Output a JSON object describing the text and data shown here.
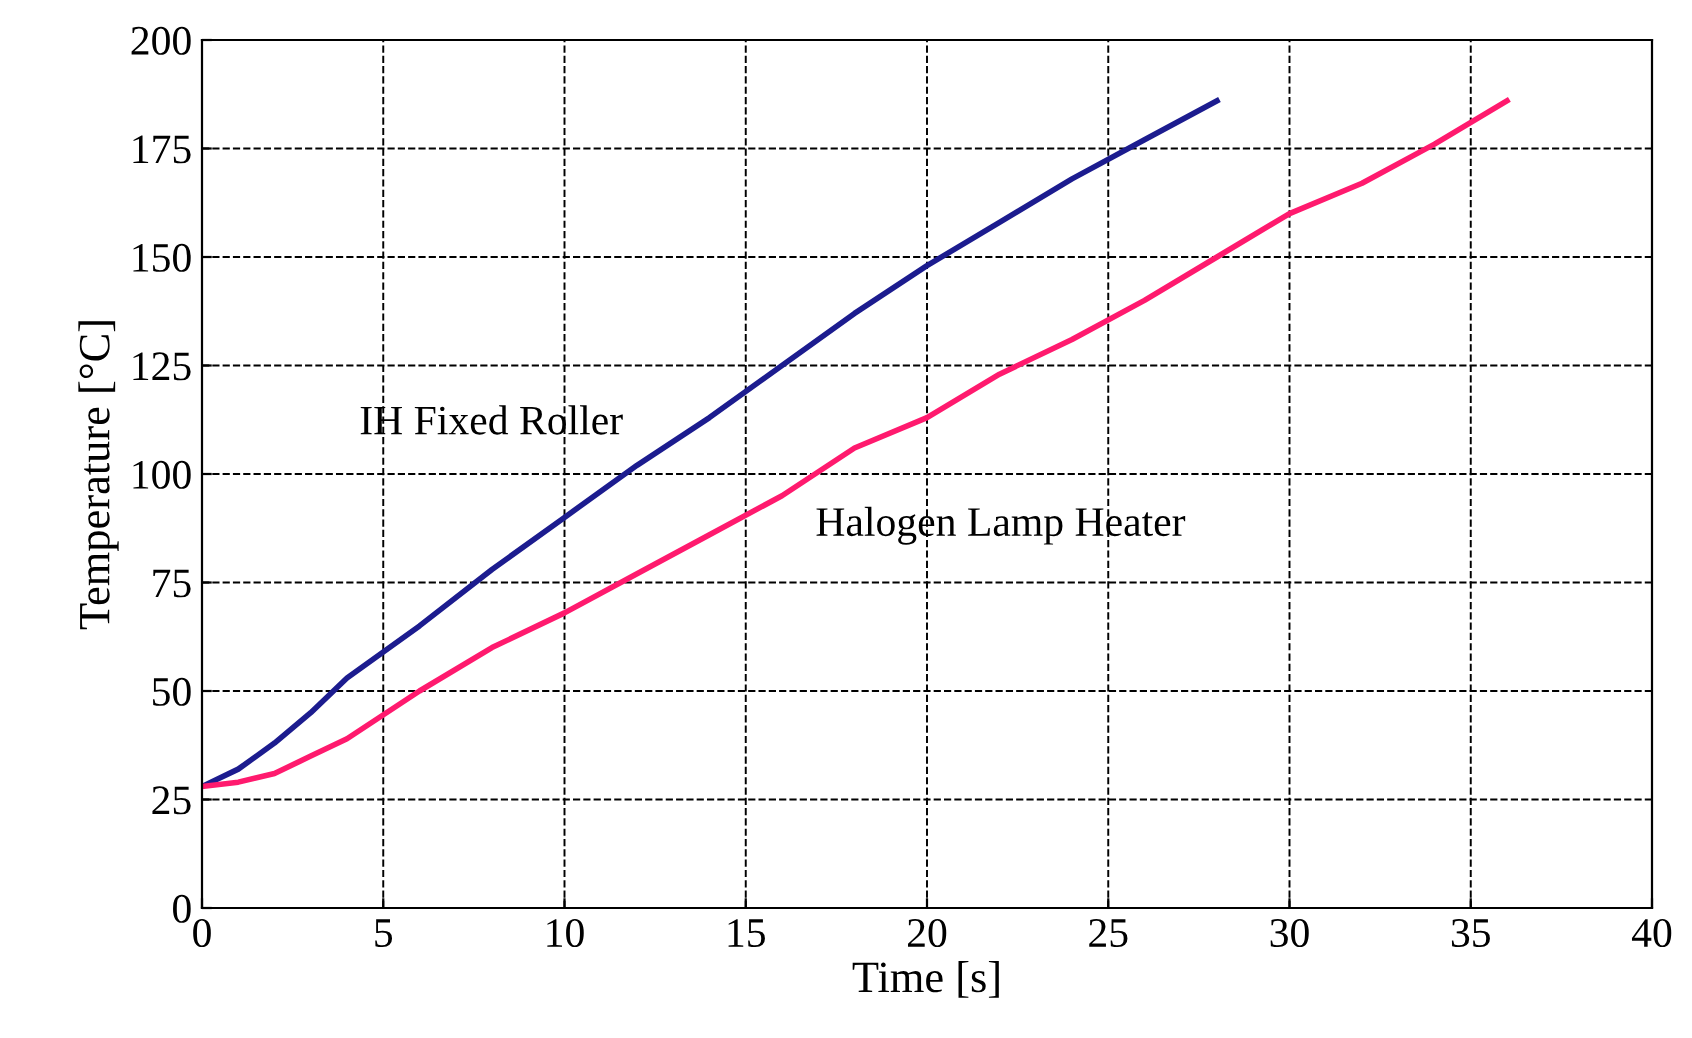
{
  "chart_data": {
    "type": "line",
    "xlabel": "Time [s]",
    "ylabel": "Temperature [°C]",
    "xlim": [
      0,
      40
    ],
    "xticks": [
      0,
      5,
      10,
      15,
      20,
      25,
      30,
      35,
      40
    ],
    "ylim": [
      0,
      200
    ],
    "yticks": [
      0,
      25,
      50,
      75,
      100,
      125,
      150,
      175,
      200
    ],
    "grid": true,
    "marker": "none",
    "line_style": "solid",
    "series": [
      {
        "name": "IH Fixed Roller",
        "color": "#1c1c8f",
        "x": [
          0,
          1,
          2,
          3,
          4,
          6,
          8,
          10,
          12,
          14,
          16,
          18,
          20,
          22,
          24,
          26,
          28
        ],
        "values": [
          28,
          32,
          38,
          45,
          53,
          65,
          78,
          90,
          102,
          113,
          125,
          137,
          148,
          158,
          168,
          177,
          186
        ]
      },
      {
        "name": "Halogen Lamp Heater",
        "color": "#ff1a6e",
        "x": [
          0,
          1,
          2,
          3,
          4,
          6,
          8,
          10,
          12,
          14,
          16,
          18,
          20,
          22,
          24,
          26,
          28,
          30,
          32,
          34,
          36
        ],
        "values": [
          28,
          29,
          31,
          35,
          39,
          50,
          60,
          68,
          77,
          86,
          95,
          106,
          113,
          123,
          131,
          140,
          150,
          160,
          167,
          176,
          186
        ]
      }
    ]
  }
}
